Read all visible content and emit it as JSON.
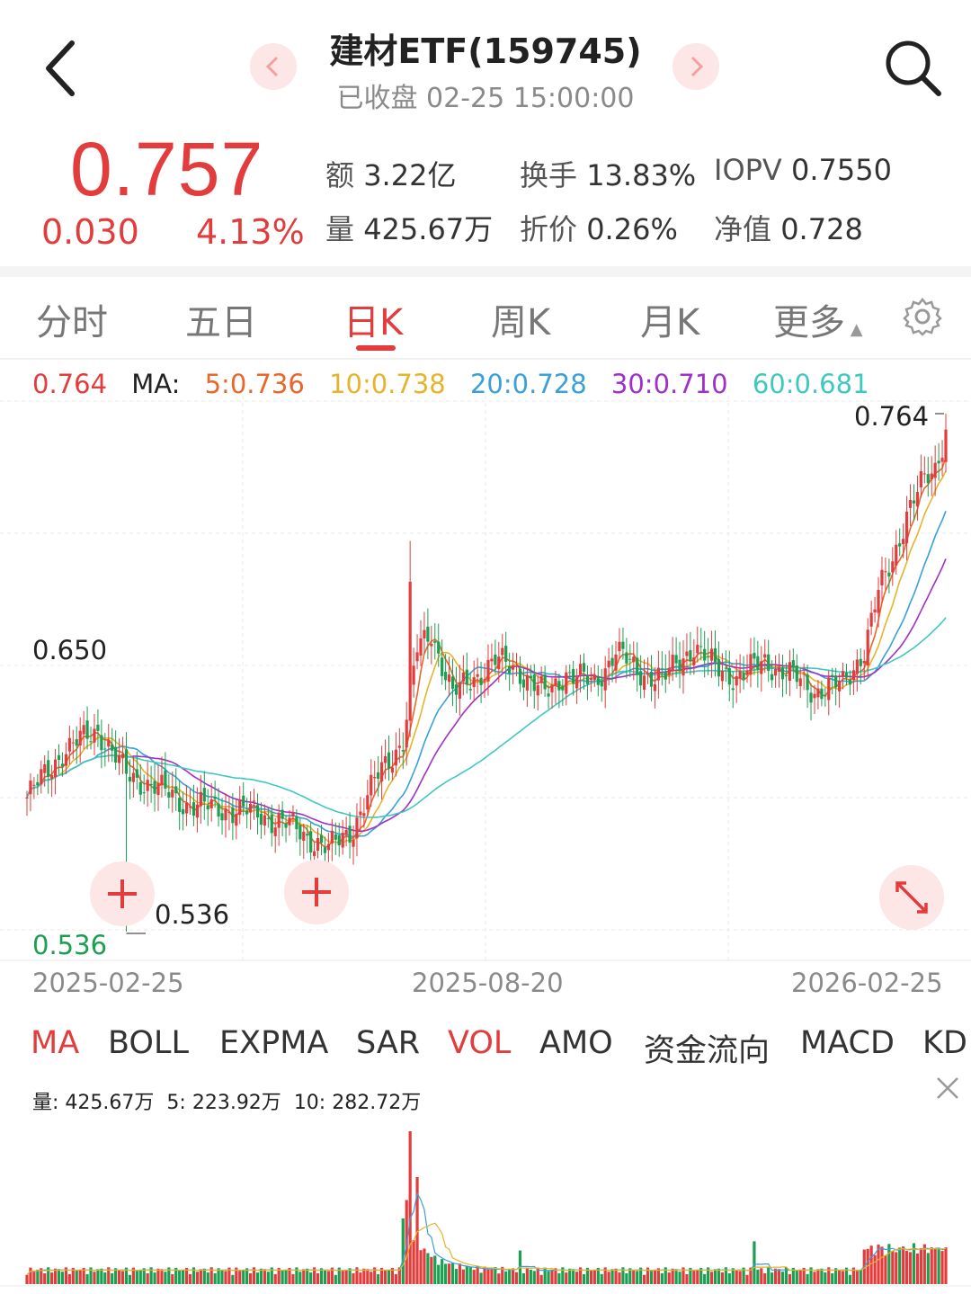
{
  "header": {
    "title": "建材ETF(159745)",
    "subtitle": "已收盘 02-25 15:00:00"
  },
  "quote": {
    "price": "0.757",
    "change": "0.030",
    "change_pct": "4.13%",
    "stats": [
      {
        "label": "额",
        "value": "3.22亿"
      },
      {
        "label": "换手",
        "value": "13.83%"
      },
      {
        "label": "IOPV",
        "value": "0.7550"
      },
      {
        "label": "量",
        "value": "425.67万"
      },
      {
        "label": "折价",
        "value": "0.26%"
      },
      {
        "label": "净值",
        "value": "0.728"
      }
    ]
  },
  "tabs": [
    "分时",
    "五日",
    "日K",
    "周K",
    "月K",
    "更多"
  ],
  "active_tab": "日K",
  "ma_legend": {
    "current": "0.764",
    "label": "MA:",
    "items": [
      {
        "text": "5:0.736",
        "color": "#e8672a"
      },
      {
        "text": "10:0.738",
        "color": "#e6b42a"
      },
      {
        "text": "20:0.728",
        "color": "#3aa0d8"
      },
      {
        "text": "30:0.710",
        "color": "#a030c8"
      },
      {
        "text": "60:0.681",
        "color": "#40c8c0"
      }
    ]
  },
  "colors": {
    "up": "#e23c3c",
    "down": "#1aa050",
    "accent": "#e23c3c"
  },
  "chart_data": {
    "type": "candlestick",
    "price_labels": {
      "high_mark": "0.764",
      "low_mark": "0.536",
      "axis_mid": "0.650",
      "axis_low": "0.536"
    },
    "date_labels": [
      "2025-02-25",
      "2025-08-20",
      "2026-02-25"
    ],
    "ylim": [
      0.536,
      0.764
    ],
    "close_anchors": [
      [
        0,
        0.595
      ],
      [
        10,
        0.615
      ],
      [
        20,
        0.625
      ],
      [
        28,
        0.605
      ],
      [
        36,
        0.6
      ],
      [
        45,
        0.592
      ],
      [
        55,
        0.59
      ],
      [
        65,
        0.588
      ],
      [
        75,
        0.582
      ],
      [
        85,
        0.572
      ],
      [
        92,
        0.582
      ],
      [
        100,
        0.608
      ],
      [
        106,
        0.62
      ],
      [
        110,
        0.66
      ],
      [
        114,
        0.668
      ],
      [
        120,
        0.64
      ],
      [
        126,
        0.648
      ],
      [
        132,
        0.655
      ],
      [
        138,
        0.652
      ],
      [
        146,
        0.64
      ],
      [
        152,
        0.65
      ],
      [
        160,
        0.645
      ],
      [
        166,
        0.66
      ],
      [
        172,
        0.65
      ],
      [
        180,
        0.648
      ],
      [
        188,
        0.662
      ],
      [
        194,
        0.652
      ],
      [
        200,
        0.648
      ],
      [
        208,
        0.655
      ],
      [
        216,
        0.648
      ],
      [
        222,
        0.642
      ],
      [
        230,
        0.645
      ],
      [
        236,
        0.66
      ],
      [
        240,
        0.685
      ],
      [
        244,
        0.7
      ],
      [
        248,
        0.72
      ],
      [
        252,
        0.732
      ],
      [
        256,
        0.74
      ],
      [
        259,
        0.757
      ]
    ],
    "volume_legend": {
      "label": "量:",
      "values": [
        {
          "name": "",
          "text": "425.67万"
        },
        {
          "name": "5:",
          "text": "223.92万"
        },
        {
          "name": "10:",
          "text": "282.72万"
        }
      ]
    }
  },
  "indicator_tabs": [
    "MA",
    "BOLL",
    "EXPMA",
    "SAR",
    "VOL",
    "AMO",
    "资金流向",
    "MACD",
    "KD"
  ],
  "active_indicators": [
    "MA",
    "VOL"
  ]
}
